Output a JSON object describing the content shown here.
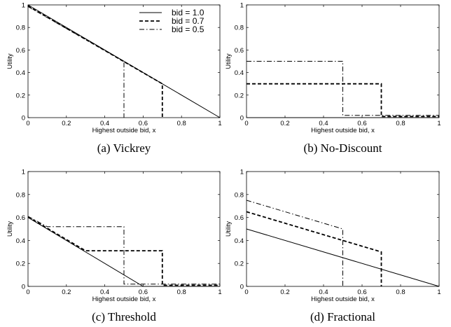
{
  "chart_data": [
    {
      "type": "line",
      "caption": "(a) Vickrey",
      "xlabel": "Highest outside bid, x",
      "ylabel": "Utility",
      "xlim": [
        0,
        1
      ],
      "ylim": [
        0,
        1
      ],
      "xticks": [
        "0",
        "0.2",
        "0.4",
        "0.6",
        "0.8",
        "1"
      ],
      "yticks": [
        "0",
        "0.2",
        "0.4",
        "0.6",
        "0.8",
        "1"
      ],
      "legend": {
        "placement": "top-right"
      },
      "series": [
        {
          "name": "bid = 1.0",
          "style": "solid",
          "points": [
            [
              0,
              1.0
            ],
            [
              1,
              0.0
            ]
          ]
        },
        {
          "name": "bid = 0.7",
          "style": "dashed",
          "points": [
            [
              0,
              0.99
            ],
            [
              0.7,
              0.3
            ],
            [
              0.7,
              0.0
            ]
          ]
        },
        {
          "name": "bid = 0.5",
          "style": "dashdot",
          "points": [
            [
              0,
              0.985
            ],
            [
              0.5,
              0.5
            ],
            [
              0.5,
              0.0
            ]
          ]
        }
      ]
    },
    {
      "type": "line",
      "caption": "(b) No-Discount",
      "xlabel": "Highest outside bid, x",
      "ylabel": "Utility",
      "xlim": [
        0,
        1
      ],
      "ylim": [
        0,
        1
      ],
      "xticks": [
        "0",
        "0.2",
        "0.4",
        "0.6",
        "0.8",
        "1"
      ],
      "yticks": [
        "0",
        "0.2",
        "0.4",
        "0.6",
        "0.8",
        "1"
      ],
      "series": [
        {
          "style": "solid",
          "points": [
            [
              0,
              0.0
            ],
            [
              1,
              0.0
            ]
          ]
        },
        {
          "style": "dashed",
          "points": [
            [
              0,
              0.3
            ],
            [
              0.7,
              0.3
            ],
            [
              0.7,
              0.01
            ],
            [
              1,
              0.01
            ]
          ]
        },
        {
          "style": "dashdot",
          "points": [
            [
              0,
              0.5
            ],
            [
              0.5,
              0.5
            ],
            [
              0.5,
              0.02
            ],
            [
              1,
              0.02
            ]
          ]
        }
      ]
    },
    {
      "type": "line",
      "caption": "(c) Threshold",
      "xlabel": "Highest outside bid, x",
      "ylabel": "Utility",
      "xlim": [
        0,
        1
      ],
      "ylim": [
        0,
        1
      ],
      "xticks": [
        "0",
        "0.2",
        "0.4",
        "0.6",
        "0.8",
        "1"
      ],
      "yticks": [
        "0",
        "0.2",
        "0.4",
        "0.6",
        "0.8",
        "1"
      ],
      "series": [
        {
          "style": "solid",
          "points": [
            [
              0,
              0.6
            ],
            [
              0.6,
              0.0
            ],
            [
              1,
              0.0
            ]
          ]
        },
        {
          "style": "dashed",
          "points": [
            [
              0,
              0.605
            ],
            [
              0.3,
              0.31
            ],
            [
              0.7,
              0.31
            ],
            [
              0.7,
              0.01
            ],
            [
              1,
              0.01
            ]
          ]
        },
        {
          "style": "dashdot",
          "points": [
            [
              0,
              0.61
            ],
            [
              0.1,
              0.52
            ],
            [
              0.5,
              0.52
            ],
            [
              0.5,
              0.02
            ],
            [
              1,
              0.02
            ]
          ]
        }
      ]
    },
    {
      "type": "line",
      "caption": "(d) Fractional",
      "xlabel": "Highest outside bid, x",
      "ylabel": "Utility",
      "xlim": [
        0,
        1
      ],
      "ylim": [
        0,
        1
      ],
      "xticks": [
        "0",
        "0.2",
        "0.4",
        "0.6",
        "0.8",
        "1"
      ],
      "yticks": [
        "0",
        "0.2",
        "0.4",
        "0.6",
        "0.8",
        "1"
      ],
      "series": [
        {
          "style": "solid",
          "points": [
            [
              0,
              0.5
            ],
            [
              1,
              0.0
            ]
          ]
        },
        {
          "style": "dashed",
          "points": [
            [
              0,
              0.65
            ],
            [
              0.7,
              0.3
            ],
            [
              0.7,
              0.0
            ]
          ]
        },
        {
          "style": "dashdot",
          "points": [
            [
              0,
              0.75
            ],
            [
              0.5,
              0.5
            ],
            [
              0.5,
              0.0
            ]
          ]
        }
      ]
    }
  ]
}
